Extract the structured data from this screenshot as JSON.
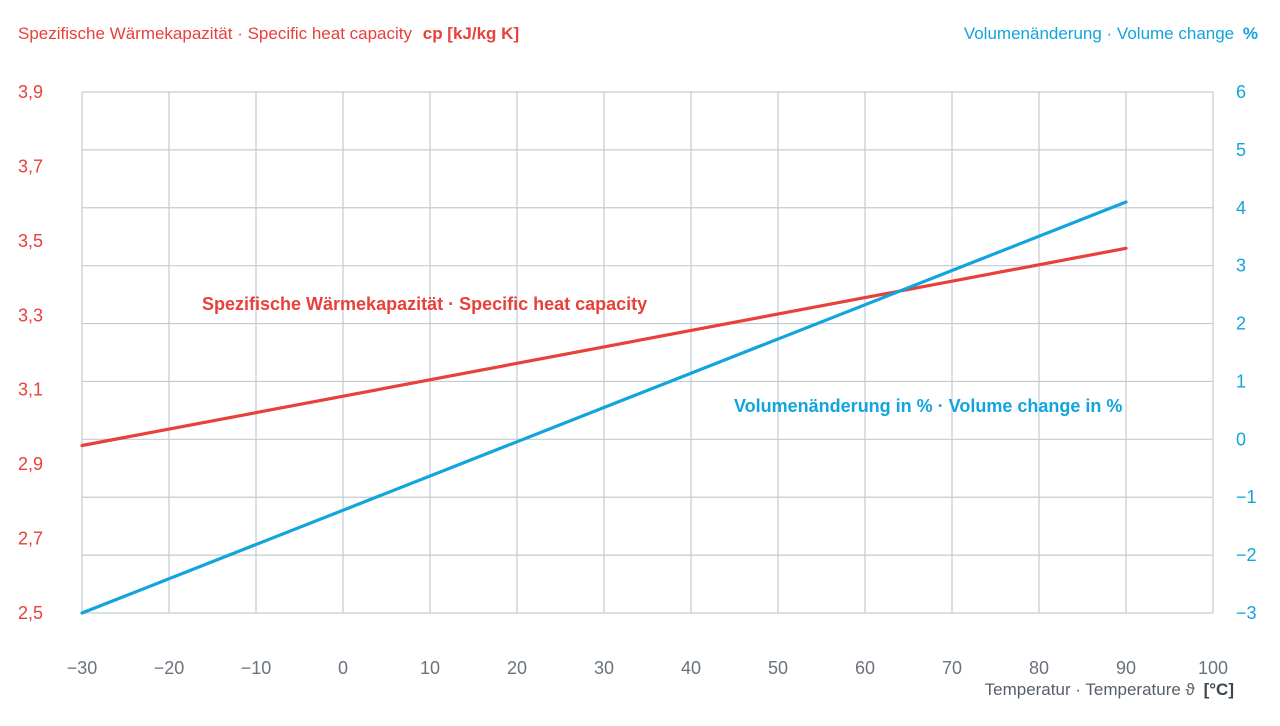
{
  "chart_data": {
    "type": "line",
    "left_axis": {
      "label_text": "Spezifische Wärmekapazität · Specific heat capacity",
      "label_unit": "cp [kJ/kg K]",
      "ticks": [
        "2,5",
        "2,7",
        "2,9",
        "3,1",
        "3,3",
        "3,5",
        "3,7",
        "3,9"
      ],
      "range": [
        2.5,
        3.9
      ],
      "color": "#e8403a"
    },
    "right_axis": {
      "label_text": "Volumenänderung · Volume change",
      "label_unit": "%",
      "ticks": [
        "−3",
        "−2",
        "−1",
        "0",
        "1",
        "2",
        "3",
        "4",
        "5",
        "6"
      ],
      "range": [
        -3,
        6
      ],
      "color": "#12a4dc"
    },
    "x_axis": {
      "label_text": "Temperatur · Temperature ϑ",
      "label_unit": "[°C]",
      "ticks": [
        "−30",
        "−20",
        "−10",
        "0",
        "10",
        "20",
        "30",
        "40",
        "50",
        "60",
        "70",
        "80",
        "90",
        "100"
      ],
      "range": [
        -30,
        100
      ]
    },
    "grid": true,
    "series": [
      {
        "name": "Spezifische Wärmekapazität · Specific heat capacity",
        "axis": "left",
        "color": "#e8403a",
        "x": [
          -30,
          90
        ],
        "y": [
          2.95,
          3.48
        ]
      },
      {
        "name": "Volumenänderung in % · Volume change in %",
        "axis": "right",
        "color": "#12a4dc",
        "x": [
          -30,
          90
        ],
        "y": [
          -3.0,
          4.1
        ]
      }
    ]
  }
}
